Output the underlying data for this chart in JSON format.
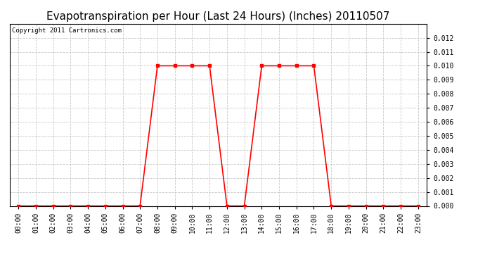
{
  "title": "Evapotranspiration per Hour (Last 24 Hours) (Inches) 20110507",
  "copyright": "Copyright 2011 Cartronics.com",
  "line_color": "#ff0000",
  "background_color": "#ffffff",
  "grid_color": "#c8c8c8",
  "hours": [
    0,
    1,
    2,
    3,
    4,
    5,
    6,
    7,
    8,
    9,
    10,
    11,
    12,
    13,
    14,
    15,
    16,
    17,
    18,
    19,
    20,
    21,
    22,
    23
  ],
  "values": [
    0.0,
    0.0,
    0.0,
    0.0,
    0.0,
    0.0,
    0.0,
    0.0,
    0.01,
    0.01,
    0.01,
    0.01,
    0.0,
    0.0,
    0.01,
    0.01,
    0.01,
    0.01,
    0.0,
    0.0,
    0.0,
    0.0,
    0.0,
    0.0
  ],
  "ylim": [
    0.0,
    0.013
  ],
  "yticks": [
    0.0,
    0.001,
    0.002,
    0.003,
    0.004,
    0.005,
    0.006,
    0.007,
    0.008,
    0.009,
    0.01,
    0.011,
    0.012
  ],
  "title_fontsize": 11,
  "copyright_fontsize": 6.5,
  "tick_fontsize": 7,
  "marker": "s",
  "marker_size": 2.5,
  "linewidth": 1.2
}
